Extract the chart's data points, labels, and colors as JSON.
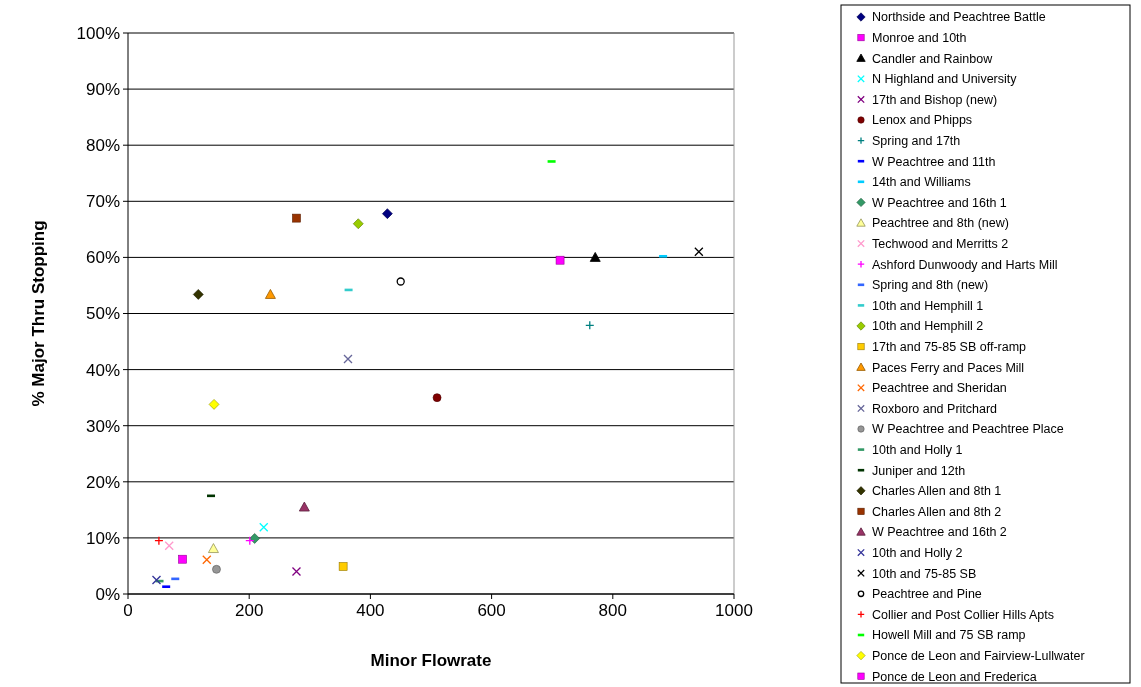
{
  "chart_data": {
    "type": "scatter",
    "xlabel": "Minor Flowrate",
    "ylabel": "% Major Thru Stopping",
    "xlim": [
      0,
      1000
    ],
    "xticks": [
      0,
      200,
      400,
      600,
      800,
      1000
    ],
    "ylim": [
      0,
      100
    ],
    "yticks": [
      {
        "value": 0,
        "label": "0%"
      },
      {
        "value": 10,
        "label": "10%"
      },
      {
        "value": 20,
        "label": "20%"
      },
      {
        "value": 30,
        "label": "30%"
      },
      {
        "value": 40,
        "label": "40%"
      },
      {
        "value": 50,
        "label": "50%"
      },
      {
        "value": 60,
        "label": "60%"
      },
      {
        "value": 70,
        "label": "70%"
      },
      {
        "value": 80,
        "label": "80%"
      },
      {
        "value": 90,
        "label": "90%"
      },
      {
        "value": 100,
        "label": "100%"
      }
    ],
    "grid": "y",
    "legend": "right",
    "series": [
      {
        "name": "Northside and Peachtree Battle",
        "color": "#000080",
        "marker": "diamond",
        "x": [
          428
        ],
        "values": [
          67.8
        ]
      },
      {
        "name": "Monroe and 10th",
        "color": "#ff00ff",
        "marker": "square",
        "x": [
          713
        ],
        "values": [
          59.5
        ]
      },
      {
        "name": "Candler and Rainbow",
        "color": "#000000",
        "marker": "triangle",
        "x": [
          771
        ],
        "values": [
          60.0
        ]
      },
      {
        "name": "N Highland and University",
        "color": "#00ffff",
        "marker": "cross",
        "x": [
          224
        ],
        "values": [
          11.9
        ]
      },
      {
        "name": "17th and Bishop (new)",
        "color": "#800080",
        "marker": "cross",
        "x": [
          278
        ],
        "values": [
          4.0
        ]
      },
      {
        "name": "Lenox and Phipps",
        "color": "#800000",
        "marker": "circle",
        "x": [
          510
        ],
        "values": [
          35.0
        ]
      },
      {
        "name": "Spring and 17th",
        "color": "#008080",
        "marker": "plus",
        "x": [
          762
        ],
        "values": [
          47.9
        ]
      },
      {
        "name": "W Peachtree and 11th",
        "color": "#0000ff",
        "x": [
          63
        ],
        "values": [
          1.3
        ]
      },
      {
        "name": "14th and Williams",
        "color": "#00ccff",
        "x": [
          883
        ],
        "values": [
          60.2
        ]
      },
      {
        "name": "W Peachtree and 16th 1",
        "color": "#339966",
        "marker": "diamond",
        "x": [
          209
        ],
        "values": [
          9.9
        ]
      },
      {
        "name": "Peachtree and 8th (new)",
        "color": "#ffff99",
        "marker": "triangle",
        "x": [
          141
        ],
        "values": [
          8.1
        ]
      },
      {
        "name": "Techwood and Merritts 2",
        "color": "#ff99cc",
        "marker": "cross",
        "x": [
          68
        ],
        "values": [
          8.6
        ]
      },
      {
        "name": "Ashford Dunwoody and Harts Mill",
        "color": "#ff00ff",
        "marker": "plus",
        "x": [
          201
        ],
        "values": [
          9.5
        ]
      },
      {
        "name": "Spring and 8th (new)",
        "color": "#3366ff",
        "x": [
          78
        ],
        "values": [
          2.7
        ]
      },
      {
        "name": "10th and Hemphill 1",
        "color": "#33cccc",
        "x": [
          364
        ],
        "values": [
          54.2
        ]
      },
      {
        "name": "10th and Hemphill 2",
        "color": "#99cc00",
        "marker": "diamond",
        "x": [
          380
        ],
        "values": [
          66.0
        ]
      },
      {
        "name": "17th and 75-85 SB off-ramp",
        "color": "#ffcc00",
        "marker": "square",
        "x": [
          355
        ],
        "values": [
          4.9
        ]
      },
      {
        "name": "Paces Ferry and Paces Mill",
        "color": "#ff9900",
        "marker": "triangle",
        "x": [
          235
        ],
        "values": [
          53.4
        ]
      },
      {
        "name": "Peachtree and Sheridan",
        "color": "#ff6600",
        "marker": "cross",
        "x": [
          130
        ],
        "values": [
          6.1
        ]
      },
      {
        "name": "Roxboro and Pritchard",
        "color": "#666699",
        "marker": "cross",
        "x": [
          363
        ],
        "values": [
          41.9
        ]
      },
      {
        "name": "W Peachtree and Peachtree Place",
        "color": "#969696",
        "marker": "circle",
        "x": [
          146
        ],
        "values": [
          4.4
        ]
      },
      {
        "name": "10th and Holly 1",
        "color": "#339966",
        "x": [
          52
        ],
        "values": [
          2.3
        ]
      },
      {
        "name": "Juniper and 12th",
        "color": "#003300",
        "x": [
          137
        ],
        "values": [
          17.5
        ]
      },
      {
        "name": "Charles Allen and 8th 1",
        "color": "#333300",
        "marker": "diamond",
        "x": [
          116
        ],
        "values": [
          53.4
        ]
      },
      {
        "name": "Charles Allen and 8th 2",
        "color": "#993300",
        "marker": "square",
        "x": [
          278
        ],
        "values": [
          67.0
        ]
      },
      {
        "name": "W Peachtree and 16th 2",
        "color": "#993366",
        "marker": "triangle",
        "x": [
          291
        ],
        "values": [
          15.5
        ]
      },
      {
        "name": "10th and Holly 2",
        "color": "#333399",
        "marker": "cross",
        "x": [
          47
        ],
        "values": [
          2.5
        ]
      },
      {
        "name": "10th and 75-85 SB",
        "color": "#000000",
        "marker": "cross",
        "x": [
          942
        ],
        "values": [
          61.0
        ]
      },
      {
        "name": "Peachtree and Pine",
        "color": "#000000",
        "marker": "circle-open",
        "x": [
          450
        ],
        "values": [
          55.7
        ]
      },
      {
        "name": "Collier and Post Collier Hills Apts",
        "color": "#ff0000",
        "marker": "plus",
        "x": [
          51
        ],
        "values": [
          9.5
        ]
      },
      {
        "name": "Howell Mill and 75 SB ramp",
        "color": "#00ff00",
        "x": [
          699
        ],
        "values": [
          77.1
        ]
      },
      {
        "name": "Ponce de Leon and Fairview-Lullwater",
        "color": "#ffff00",
        "marker": "diamond",
        "x": [
          142
        ],
        "values": [
          33.8
        ]
      },
      {
        "name": "Ponce de Leon and Frederica",
        "color": "#ff00ff",
        "marker": "square",
        "x": [
          90
        ],
        "values": [
          6.2
        ]
      }
    ]
  }
}
